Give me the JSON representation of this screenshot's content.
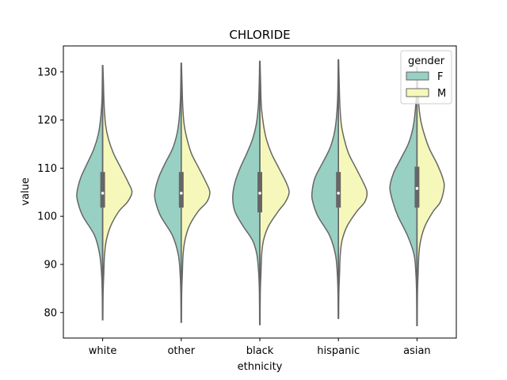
{
  "chart_data": {
    "type": "violin",
    "title": "CHLORIDE",
    "xlabel": "ethnicity",
    "ylabel": "value",
    "ylim": [
      74.7,
      135.4
    ],
    "yticks": [
      80,
      90,
      100,
      110,
      120,
      130
    ],
    "categories": [
      "white",
      "other",
      "black",
      "hispanic",
      "asian"
    ],
    "split": true,
    "legend": {
      "title": "gender",
      "position": "top-right",
      "entries": [
        {
          "label": "F",
          "color": "#98d0c3"
        },
        {
          "label": "M",
          "color": "#f6f8bb"
        }
      ]
    },
    "series": [
      {
        "name": "F",
        "side": "left",
        "color": "#98d0c3"
      },
      {
        "name": "M",
        "side": "right",
        "color": "#f6f8bb"
      }
    ],
    "groups": [
      {
        "category": "white",
        "min": 78.5,
        "max": 131.3,
        "q1": 101.8,
        "median": 104.8,
        "q3": 109.2,
        "F": [
          [
            78.5,
            0.3
          ],
          [
            84,
            0.6
          ],
          [
            88,
            1.5
          ],
          [
            92,
            4
          ],
          [
            96,
            11
          ],
          [
            100,
            27
          ],
          [
            103,
            34
          ],
          [
            105,
            35
          ],
          [
            108,
            30
          ],
          [
            111,
            21
          ],
          [
            114,
            12
          ],
          [
            117,
            6
          ],
          [
            120,
            3
          ],
          [
            124,
            1
          ],
          [
            128,
            0.5
          ],
          [
            131.3,
            0.3
          ]
        ],
        "M": [
          [
            78.5,
            0.3
          ],
          [
            84,
            0.6
          ],
          [
            88,
            1.5
          ],
          [
            92,
            2.5
          ],
          [
            95,
            5
          ],
          [
            98,
            11
          ],
          [
            101,
            22
          ],
          [
            103,
            34
          ],
          [
            105,
            40
          ],
          [
            107,
            35
          ],
          [
            110,
            25
          ],
          [
            113,
            15
          ],
          [
            116,
            8
          ],
          [
            119,
            4
          ],
          [
            123,
            2
          ],
          [
            128,
            1
          ],
          [
            131.3,
            0.3
          ]
        ]
      },
      {
        "category": "other",
        "min": 78.0,
        "max": 131.8,
        "q1": 101.8,
        "median": 104.8,
        "q3": 109.2,
        "F": [
          [
            78,
            0.3
          ],
          [
            84,
            0.6
          ],
          [
            88,
            1.5
          ],
          [
            92,
            4
          ],
          [
            96,
            12
          ],
          [
            100,
            28
          ],
          [
            103,
            35
          ],
          [
            105,
            36
          ],
          [
            108,
            31
          ],
          [
            111,
            22
          ],
          [
            114,
            12
          ],
          [
            117,
            6
          ],
          [
            120,
            3
          ],
          [
            124,
            1.2
          ],
          [
            128,
            0.6
          ],
          [
            131.8,
            0.3
          ]
        ],
        "M": [
          [
            78,
            0.3
          ],
          [
            84,
            0.6
          ],
          [
            88,
            1.5
          ],
          [
            92,
            2.5
          ],
          [
            95,
            5
          ],
          [
            98,
            11
          ],
          [
            101,
            23
          ],
          [
            103,
            35
          ],
          [
            105,
            39
          ],
          [
            107,
            34
          ],
          [
            110,
            24
          ],
          [
            113,
            14
          ],
          [
            116,
            8
          ],
          [
            119,
            4
          ],
          [
            123,
            2
          ],
          [
            128,
            1
          ],
          [
            131.8,
            0.3
          ]
        ]
      },
      {
        "category": "black",
        "min": 77.5,
        "max": 132.2,
        "q1": 100.8,
        "median": 104.8,
        "q3": 109.2,
        "F": [
          [
            77.5,
            0.3
          ],
          [
            84,
            0.6
          ],
          [
            88,
            1.5
          ],
          [
            92,
            4
          ],
          [
            95,
            10
          ],
          [
            98,
            23
          ],
          [
            101,
            34
          ],
          [
            104,
            37
          ],
          [
            107,
            34
          ],
          [
            110,
            27
          ],
          [
            113,
            18
          ],
          [
            116,
            10
          ],
          [
            119,
            5
          ],
          [
            123,
            2
          ],
          [
            128,
            0.8
          ],
          [
            132.2,
            0.3
          ]
        ],
        "M": [
          [
            77.5,
            0.3
          ],
          [
            84,
            0.6
          ],
          [
            88,
            1.5
          ],
          [
            92,
            2.5
          ],
          [
            95,
            5
          ],
          [
            98,
            12
          ],
          [
            101,
            25
          ],
          [
            103,
            35
          ],
          [
            105,
            40
          ],
          [
            107,
            36
          ],
          [
            110,
            26
          ],
          [
            113,
            16
          ],
          [
            116,
            9
          ],
          [
            119,
            5
          ],
          [
            123,
            2
          ],
          [
            128,
            1
          ],
          [
            132.2,
            0.3
          ]
        ]
      },
      {
        "category": "hispanic",
        "min": 78.8,
        "max": 132.5,
        "q1": 101.8,
        "median": 104.8,
        "q3": 109.2,
        "F": [
          [
            78.8,
            0.3
          ],
          [
            84,
            0.6
          ],
          [
            88,
            1.5
          ],
          [
            92,
            4
          ],
          [
            96,
            12
          ],
          [
            100,
            28
          ],
          [
            103,
            35
          ],
          [
            105,
            36
          ],
          [
            108,
            32
          ],
          [
            111,
            22
          ],
          [
            114,
            12
          ],
          [
            117,
            6
          ],
          [
            120,
            3
          ],
          [
            124,
            1.2
          ],
          [
            128,
            0.6
          ],
          [
            132.5,
            0.3
          ]
        ],
        "M": [
          [
            78.8,
            0.3
          ],
          [
            84,
            0.6
          ],
          [
            88,
            1.5
          ],
          [
            92,
            2.5
          ],
          [
            95,
            5
          ],
          [
            98,
            12
          ],
          [
            101,
            25
          ],
          [
            103,
            36
          ],
          [
            105,
            39
          ],
          [
            107,
            34
          ],
          [
            110,
            24
          ],
          [
            113,
            14
          ],
          [
            116,
            8
          ],
          [
            119,
            4
          ],
          [
            123,
            2
          ],
          [
            128,
            1
          ],
          [
            132.5,
            0.3
          ]
        ]
      },
      {
        "category": "asian",
        "min": 77.3,
        "max": 131.0,
        "q1": 101.8,
        "median": 105.8,
        "q3": 110.3,
        "F": [
          [
            77.3,
            0.3
          ],
          [
            84,
            0.6
          ],
          [
            88,
            1.5
          ],
          [
            92,
            4
          ],
          [
            96,
            13
          ],
          [
            100,
            26
          ],
          [
            103,
            33
          ],
          [
            106,
            37
          ],
          [
            109,
            32
          ],
          [
            112,
            22
          ],
          [
            115,
            12
          ],
          [
            118,
            6
          ],
          [
            121,
            3
          ],
          [
            125,
            1
          ],
          [
            131,
            0.3
          ]
        ],
        "M": [
          [
            77.3,
            0.3
          ],
          [
            84,
            0.6
          ],
          [
            88,
            1.5
          ],
          [
            92,
            2.5
          ],
          [
            95,
            5
          ],
          [
            98,
            11
          ],
          [
            101,
            22
          ],
          [
            103,
            32
          ],
          [
            106,
            37
          ],
          [
            108,
            35
          ],
          [
            111,
            27
          ],
          [
            114,
            17
          ],
          [
            117,
            10
          ],
          [
            120,
            5
          ],
          [
            124,
            2
          ],
          [
            131,
            0.3
          ]
        ]
      }
    ]
  }
}
